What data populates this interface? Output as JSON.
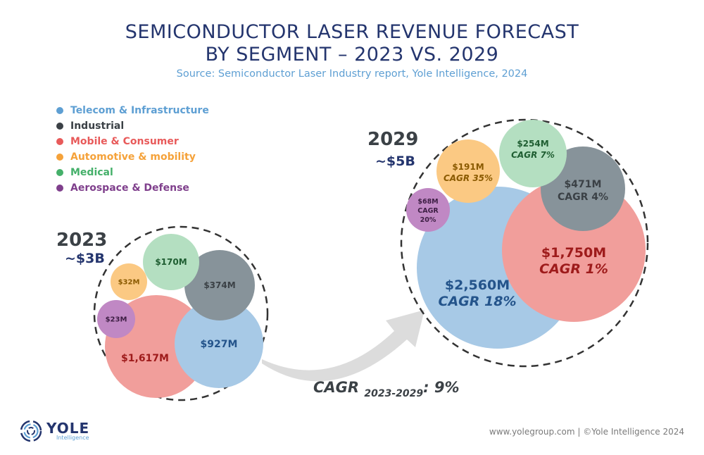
{
  "title_line1": "SEMICONDUCTOR LASER REVENUE FORECAST",
  "title_line2": "BY SEGMENT – 2023 VS. 2029",
  "subtitle": "Source: Semiconductor Laser Industry report, Yole Intelligence, 2024",
  "legend": [
    {
      "label": "Telecom & Infrastructure",
      "color": "#5e9fd3"
    },
    {
      "label": "Industrial",
      "color": "#3b4146"
    },
    {
      "label": "Mobile & Consumer",
      "color": "#e85a5a"
    },
    {
      "label": "Automotive & mobility",
      "color": "#f5a23a"
    },
    {
      "label": "Medical",
      "color": "#45b06a"
    },
    {
      "label": "Aerospace & Defense",
      "color": "#7f3f8c"
    }
  ],
  "group_2023": {
    "year": "2023",
    "total": "~$3B"
  },
  "group_2029": {
    "year": "2029",
    "total": "~$5B"
  },
  "cagr": {
    "prefix": "CAGR ",
    "period": "2023-2029",
    "suffix": ": 9%"
  },
  "logo": {
    "name": "YOLE",
    "sub": "Intelligence"
  },
  "footer": "www.yolegroup.com | ©Yole Intelligence 2024",
  "chart_data": {
    "type": "bubble",
    "title": "SEMICONDUCTOR LASER REVENUE FORECAST BY SEGMENT – 2023 VS. 2029",
    "subtitle": "Source: Semiconductor Laser Industry report, Yole Intelligence, 2024",
    "unit": "$M",
    "categories": [
      "Telecom & Infrastructure",
      "Industrial",
      "Mobile & Consumer",
      "Automotive & mobility",
      "Medical",
      "Aerospace & Defense"
    ],
    "series": [
      {
        "name": "2023",
        "total_label": "~$3B",
        "values": [
          927,
          374,
          1617,
          32,
          170,
          23
        ],
        "labels": [
          "$927M",
          "$374M",
          "$1,617M",
          "$32M",
          "$170M",
          "$23M"
        ]
      },
      {
        "name": "2029",
        "total_label": "~$5B",
        "values": [
          2560,
          471,
          1750,
          191,
          254,
          68
        ],
        "labels": [
          "$2,560M",
          "$471M",
          "$1,750M",
          "$191M",
          "$254M",
          "$68M"
        ],
        "cagr_labels": [
          "CAGR 18%",
          "CAGR 4%",
          "CAGR 1%",
          "CAGR 35%",
          "CAGR 7%",
          "CAGR 20%"
        ]
      }
    ],
    "overall_cagr": "9%",
    "overall_cagr_period": "2023-2029",
    "fill_colors": [
      "#a7c9e6",
      "#87939a",
      "#f19e9b",
      "#fbc983",
      "#b4dfc1",
      "#c088c4"
    ],
    "text_colors": [
      "#24548b",
      "#3b4146",
      "#9e1b1b",
      "#8a5a00",
      "#1f5e32",
      "#3d1e44"
    ]
  }
}
